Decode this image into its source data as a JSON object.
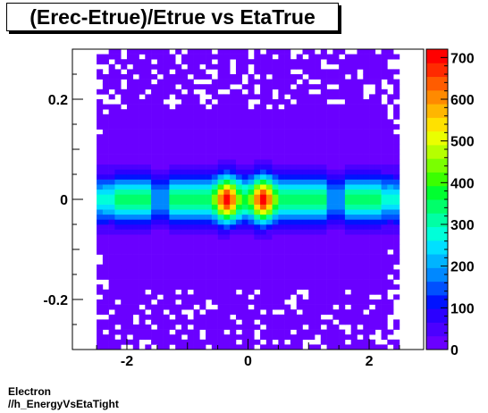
{
  "chart_data": {
    "type": "heatmap",
    "title": "(Erec-Etrue)/Etrue vs EtaTrue",
    "xlim": [
      -2.9,
      2.9
    ],
    "ylim": [
      -0.3,
      0.3
    ],
    "x_ticks": [
      -2,
      0,
      2
    ],
    "x_tick_labels": [
      "-2",
      "0",
      "2"
    ],
    "y_ticks": [
      -0.2,
      0,
      0.2
    ],
    "y_tick_labels": [
      "-0.2",
      "0",
      "0.2"
    ],
    "z_range": [
      0,
      720
    ],
    "colorbar_ticks": [
      0,
      100,
      200,
      300,
      400,
      500,
      600,
      700
    ],
    "colorbar_tick_labels": [
      "0",
      "100",
      "200",
      "300",
      "400",
      "500",
      "600",
      "700"
    ],
    "palette": [
      "#6a00ff",
      "#4b00ff",
      "#2b00ff",
      "#0013ff",
      "#0050ff",
      "#0088ff",
      "#00b4ff",
      "#00e0ff",
      "#00ffd9",
      "#00ffa4",
      "#00ff6a",
      "#00ff30",
      "#3bff00",
      "#7aff00",
      "#b6ff00",
      "#eaff00",
      "#ffe100",
      "#ffb600",
      "#ff8a00",
      "#ff5c00",
      "#ff2a00",
      "#ff0000"
    ],
    "x_range_of_data": [
      -2.5,
      2.5
    ],
    "y_core_half_width": 0.03,
    "peak_x_positions": [
      -0.35,
      0.25
    ],
    "peak_value": 700,
    "x_bins": 50,
    "y_bins": 60
  },
  "footer": {
    "line1": "Electron",
    "line2": "//h_EnergyVsEtaTight"
  }
}
